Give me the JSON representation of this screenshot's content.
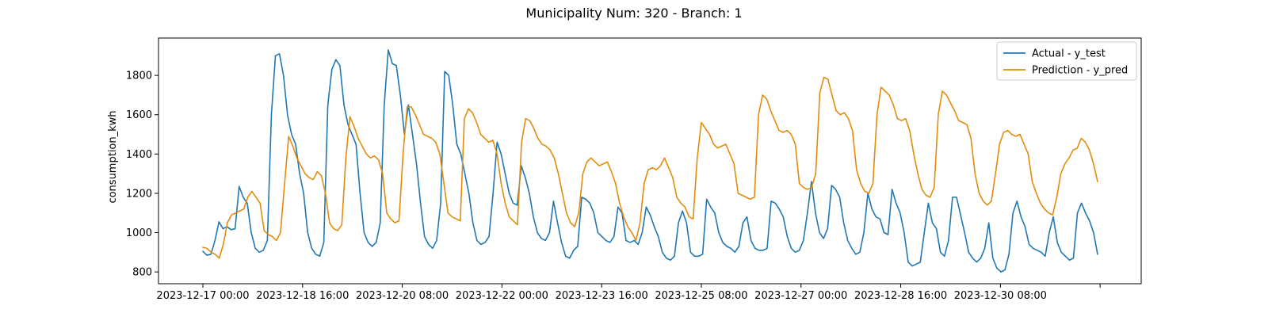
{
  "chart_data": {
    "type": "line",
    "title": "Municipality Num: 320 - Branch: 1",
    "xlabel": "",
    "ylabel": "consumption_kwh",
    "ylim": [
      740,
      1990
    ],
    "yticks": [
      800,
      1000,
      1200,
      1400,
      1600,
      1800
    ],
    "x_start": "2023-12-17 00:00",
    "x_end": "2023-12-31 23:00",
    "x_step_hours": 3,
    "xticks": [
      "2023-12-17 00:00",
      "2023-12-18 16:00",
      "2023-12-20 08:00",
      "2023-12-22 00:00",
      "2023-12-23 16:00",
      "2023-12-25 08:00",
      "2023-12-27 00:00",
      "2023-12-28 16:00",
      "2023-12-30 08:00",
      ""
    ],
    "legend": "top-right",
    "grid": false,
    "series": [
      {
        "name": "Actual - y_test",
        "color": "#1f77b4",
        "values": [
          905,
          885,
          890,
          960,
          1055,
          1020,
          1030,
          1015,
          1020,
          1235,
          1180,
          1150,
          1000,
          920,
          900,
          910,
          960,
          1600,
          1900,
          1910,
          1800,
          1600,
          1500,
          1450,
          1300,
          1200,
          1000,
          920,
          890,
          880,
          950,
          1650,
          1830,
          1880,
          1850,
          1650,
          1550,
          1500,
          1450,
          1200,
          1000,
          950,
          930,
          950,
          1050,
          1650,
          1930,
          1860,
          1850,
          1700,
          1500,
          1650,
          1500,
          1350,
          1150,
          980,
          940,
          920,
          960,
          1150,
          1820,
          1800,
          1650,
          1450,
          1400,
          1300,
          1200,
          1050,
          960,
          940,
          950,
          980,
          1200,
          1460,
          1400,
          1300,
          1200,
          1150,
          1140,
          1340,
          1280,
          1200,
          1080,
          1000,
          970,
          960,
          1000,
          1160,
          1050,
          950,
          880,
          870,
          910,
          930,
          1180,
          1170,
          1150,
          1100,
          1000,
          980,
          960,
          950,
          980,
          1130,
          1100,
          960,
          950,
          960,
          940,
          1000,
          1130,
          1090,
          1030,
          980,
          900,
          870,
          860,
          880,
          1050,
          1110,
          1050,
          900,
          880,
          880,
          890,
          1170,
          1130,
          1100,
          1000,
          950,
          930,
          920,
          900,
          930,
          1050,
          1080,
          960,
          920,
          910,
          910,
          920,
          1160,
          1150,
          1120,
          1080,
          980,
          920,
          900,
          910,
          960,
          1100,
          1260,
          1100,
          1000,
          970,
          1020,
          1240,
          1220,
          1180,
          1050,
          960,
          920,
          890,
          900,
          1000,
          1200,
          1120,
          1080,
          1070,
          1000,
          990,
          1220,
          1150,
          1100,
          1000,
          850,
          830,
          840,
          850,
          1000,
          1150,
          1050,
          1020,
          900,
          880,
          960,
          1180,
          1180,
          1090,
          1000,
          900,
          870,
          850,
          870,
          920,
          1050,
          870,
          820,
          800,
          810,
          890,
          1100,
          1160,
          1080,
          1030,
          940,
          920,
          910,
          900,
          880,
          1000,
          1080,
          950,
          900,
          880,
          860,
          870,
          1100,
          1150,
          1100,
          1060,
          1000,
          890
        ]
      },
      {
        "name": "Prediction - y_pred",
        "color": "#e38c0c",
        "values": [
          925,
          920,
          900,
          890,
          870,
          940,
          1050,
          1090,
          1100,
          1110,
          1120,
          1180,
          1210,
          1180,
          1150,
          1010,
          990,
          980,
          960,
          1000,
          1250,
          1490,
          1440,
          1380,
          1340,
          1300,
          1280,
          1270,
          1310,
          1290,
          1200,
          1050,
          1020,
          1010,
          1040,
          1380,
          1590,
          1540,
          1480,
          1440,
          1400,
          1380,
          1390,
          1370,
          1300,
          1100,
          1070,
          1050,
          1060,
          1400,
          1640,
          1640,
          1600,
          1550,
          1500,
          1490,
          1480,
          1460,
          1400,
          1250,
          1100,
          1080,
          1070,
          1060,
          1580,
          1630,
          1610,
          1560,
          1500,
          1480,
          1460,
          1470,
          1400,
          1250,
          1150,
          1080,
          1060,
          1040,
          1460,
          1580,
          1570,
          1530,
          1480,
          1450,
          1440,
          1420,
          1380,
          1300,
          1200,
          1100,
          1050,
          1030,
          1100,
          1300,
          1360,
          1380,
          1360,
          1340,
          1350,
          1360,
          1310,
          1250,
          1150,
          1080,
          1030,
          1000,
          960,
          1050,
          1250,
          1320,
          1330,
          1320,
          1340,
          1380,
          1330,
          1280,
          1180,
          1150,
          1130,
          1080,
          1070,
          1380,
          1560,
          1530,
          1500,
          1450,
          1430,
          1440,
          1450,
          1400,
          1350,
          1200,
          1190,
          1180,
          1170,
          1180,
          1600,
          1700,
          1680,
          1620,
          1570,
          1520,
          1510,
          1520,
          1500,
          1450,
          1250,
          1230,
          1220,
          1230,
          1300,
          1710,
          1790,
          1780,
          1700,
          1620,
          1600,
          1610,
          1580,
          1520,
          1320,
          1250,
          1210,
          1200,
          1250,
          1600,
          1740,
          1720,
          1700,
          1650,
          1580,
          1570,
          1580,
          1520,
          1400,
          1300,
          1220,
          1190,
          1180,
          1230,
          1600,
          1720,
          1700,
          1660,
          1620,
          1570,
          1560,
          1550,
          1480,
          1300,
          1200,
          1160,
          1140,
          1160,
          1300,
          1450,
          1510,
          1520,
          1500,
          1490,
          1500,
          1450,
          1400,
          1260,
          1200,
          1150,
          1120,
          1100,
          1090,
          1180,
          1300,
          1350,
          1380,
          1420,
          1430,
          1480,
          1460,
          1420,
          1350,
          1260
        ]
      }
    ]
  }
}
